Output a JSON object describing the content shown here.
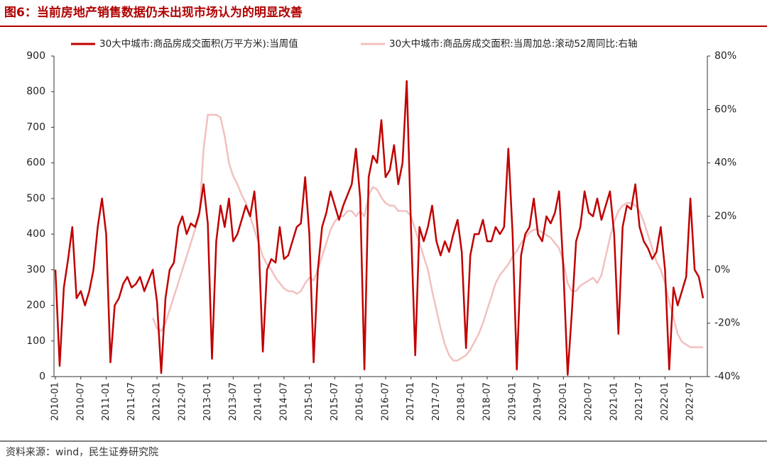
{
  "chart_data": {
    "type": "line",
    "title": "图6：当前房地产销售数据仍未出现市场认为的明显改善",
    "source": "资料来源：wind，民生证券研究院",
    "x": [
      "2010-01",
      "2010-02",
      "2010-03",
      "2010-04",
      "2010-05",
      "2010-06",
      "2010-07",
      "2010-08",
      "2010-09",
      "2010-10",
      "2010-11",
      "2010-12",
      "2011-01",
      "2011-02",
      "2011-03",
      "2011-04",
      "2011-05",
      "2011-06",
      "2011-07",
      "2011-08",
      "2011-09",
      "2011-10",
      "2011-11",
      "2011-12",
      "2012-01",
      "2012-02",
      "2012-03",
      "2012-04",
      "2012-05",
      "2012-06",
      "2012-07",
      "2012-08",
      "2012-09",
      "2012-10",
      "2012-11",
      "2012-12",
      "2013-01",
      "2013-02",
      "2013-03",
      "2013-04",
      "2013-05",
      "2013-06",
      "2013-07",
      "2013-08",
      "2013-09",
      "2013-10",
      "2013-11",
      "2013-12",
      "2014-01",
      "2014-02",
      "2014-03",
      "2014-04",
      "2014-05",
      "2014-06",
      "2014-07",
      "2014-08",
      "2014-09",
      "2014-10",
      "2014-11",
      "2014-12",
      "2015-01",
      "2015-02",
      "2015-03",
      "2015-04",
      "2015-05",
      "2015-06",
      "2015-07",
      "2015-08",
      "2015-09",
      "2015-10",
      "2015-11",
      "2015-12",
      "2016-01",
      "2016-02",
      "2016-03",
      "2016-04",
      "2016-05",
      "2016-06",
      "2016-07",
      "2016-08",
      "2016-09",
      "2016-10",
      "2016-11",
      "2016-12",
      "2017-01",
      "2017-02",
      "2017-03",
      "2017-04",
      "2017-05",
      "2017-06",
      "2017-07",
      "2017-08",
      "2017-09",
      "2017-10",
      "2017-11",
      "2017-12",
      "2018-01",
      "2018-02",
      "2018-03",
      "2018-04",
      "2018-05",
      "2018-06",
      "2018-07",
      "2018-08",
      "2018-09",
      "2018-10",
      "2018-11",
      "2018-12",
      "2019-01",
      "2019-02",
      "2019-03",
      "2019-04",
      "2019-05",
      "2019-06",
      "2019-07",
      "2019-08",
      "2019-09",
      "2019-10",
      "2019-11",
      "2019-12",
      "2020-01",
      "2020-02",
      "2020-03",
      "2020-04",
      "2020-05",
      "2020-06",
      "2020-07",
      "2020-08",
      "2020-09",
      "2020-10",
      "2020-11",
      "2020-12",
      "2021-01",
      "2021-02",
      "2021-03",
      "2021-04",
      "2021-05",
      "2021-06",
      "2021-07",
      "2021-08",
      "2021-09",
      "2021-10",
      "2021-11",
      "2021-12",
      "2022-01",
      "2022-02",
      "2022-03",
      "2022-04",
      "2022-05",
      "2022-06",
      "2022-07",
      "2022-08",
      "2022-09",
      "2022-10"
    ],
    "xticks": [
      "2010-01",
      "2010-07",
      "2011-01",
      "2011-07",
      "2012-01",
      "2012-07",
      "2013-01",
      "2013-07",
      "2014-01",
      "2014-07",
      "2015-01",
      "2015-07",
      "2016-01",
      "2016-07",
      "2017-01",
      "2017-07",
      "2018-01",
      "2018-07",
      "2019-01",
      "2019-07",
      "2020-01",
      "2020-07",
      "2021-01",
      "2021-07",
      "2022-01",
      "2022-07"
    ],
    "series": [
      {
        "name": "30大中城市:商品房成交面积(万平方米):当周值",
        "color": "#c00000",
        "axis": "y",
        "values": [
          300,
          30,
          250,
          330,
          420,
          220,
          240,
          200,
          240,
          300,
          420,
          500,
          400,
          40,
          200,
          220,
          260,
          280,
          250,
          260,
          280,
          240,
          270,
          300,
          210,
          10,
          220,
          300,
          320,
          420,
          450,
          400,
          430,
          420,
          460,
          540,
          430,
          50,
          380,
          480,
          420,
          500,
          380,
          400,
          440,
          480,
          450,
          520,
          380,
          70,
          300,
          330,
          320,
          420,
          330,
          340,
          380,
          420,
          430,
          560,
          400,
          40,
          300,
          420,
          460,
          520,
          480,
          440,
          480,
          510,
          540,
          640,
          500,
          20,
          560,
          620,
          600,
          720,
          560,
          580,
          650,
          540,
          600,
          830,
          420,
          60,
          420,
          380,
          420,
          480,
          380,
          340,
          380,
          350,
          400,
          440,
          350,
          80,
          340,
          400,
          400,
          440,
          380,
          380,
          420,
          400,
          420,
          640,
          400,
          20,
          340,
          400,
          420,
          500,
          400,
          380,
          450,
          430,
          460,
          520,
          300,
          5,
          180,
          380,
          420,
          520,
          460,
          450,
          500,
          440,
          480,
          520,
          400,
          120,
          420,
          480,
          470,
          540,
          420,
          380,
          360,
          330,
          350,
          420,
          300,
          20,
          250,
          200,
          240,
          280,
          500,
          300,
          280,
          220
        ]
      },
      {
        "name": "30大中城市:商品房成交面积:当周加总:滚动52周同比:右轴",
        "color": "#f2c0c0",
        "axis": "y2",
        "values": [
          null,
          null,
          null,
          null,
          null,
          null,
          null,
          null,
          null,
          null,
          null,
          null,
          null,
          null,
          null,
          null,
          null,
          null,
          null,
          null,
          null,
          null,
          null,
          -18,
          -22,
          -23,
          -20,
          -15,
          -10,
          -5,
          0,
          5,
          10,
          15,
          20,
          45,
          58,
          58,
          58,
          57,
          50,
          40,
          35,
          32,
          28,
          25,
          20,
          15,
          10,
          5,
          2,
          0,
          -3,
          -5,
          -7,
          -8,
          -8,
          -9,
          -8,
          -5,
          -3,
          -4,
          0,
          5,
          10,
          15,
          18,
          20,
          20,
          22,
          22,
          20,
          22,
          20,
          28,
          31,
          30,
          27,
          25,
          24,
          24,
          22,
          22,
          22,
          20,
          15,
          10,
          5,
          0,
          -8,
          -15,
          -22,
          -28,
          -32,
          -34,
          -34,
          -33,
          -32,
          -30,
          -27,
          -24,
          -20,
          -15,
          -10,
          -5,
          -2,
          0,
          2,
          5,
          7,
          10,
          12,
          14,
          15,
          15,
          14,
          13,
          12,
          10,
          8,
          3,
          -5,
          -8,
          -8,
          -6,
          -5,
          -4,
          -3,
          -5,
          -2,
          5,
          12,
          18,
          22,
          24,
          25,
          25,
          24,
          22,
          18,
          13,
          8,
          3,
          0,
          -5,
          -12,
          -18,
          -24,
          -27,
          -28,
          -29,
          -29,
          -29,
          -29
        ]
      }
    ],
    "ylim": [
      0,
      900
    ],
    "yticks": [
      0,
      100,
      200,
      300,
      400,
      500,
      600,
      700,
      800,
      900
    ],
    "y2lim": [
      -40,
      80
    ],
    "y2ticks": [
      {
        "value": -40,
        "label": "-40%"
      },
      {
        "value": -20,
        "label": "-20%"
      },
      {
        "value": 0,
        "label": "0%"
      },
      {
        "value": 20,
        "label": "20%"
      },
      {
        "value": 40,
        "label": "40%"
      },
      {
        "value": 60,
        "label": "60%"
      },
      {
        "value": 80,
        "label": "80%"
      }
    ],
    "grid": false,
    "legend": "top"
  }
}
